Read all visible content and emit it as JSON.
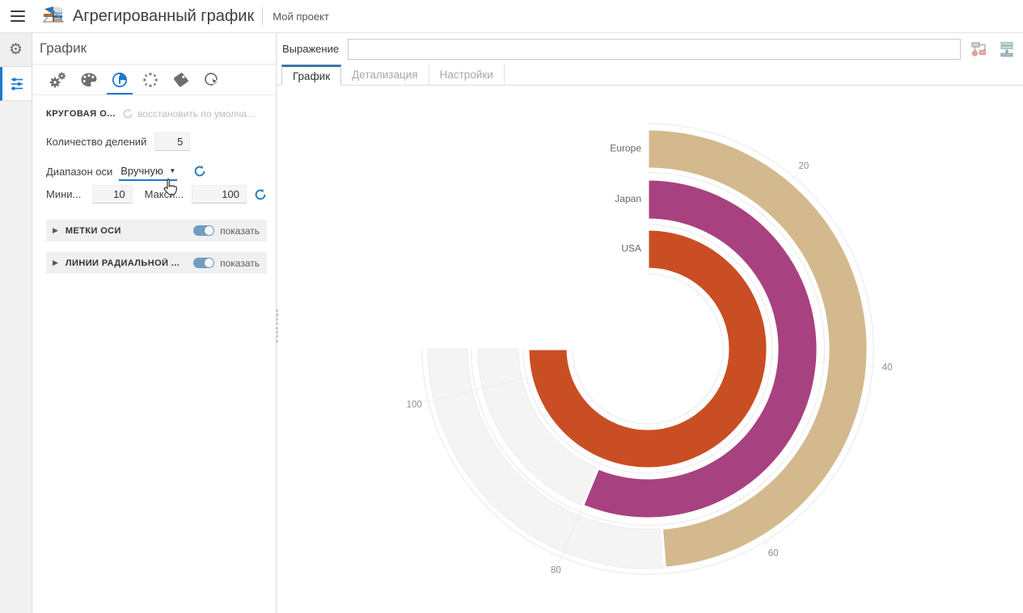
{
  "header": {
    "title": "Агрегированный график",
    "project": "Мой проект"
  },
  "rail": {
    "items": [
      {
        "icon": "gear-icon"
      },
      {
        "icon": "sliders-icon",
        "active": true
      }
    ]
  },
  "panel": {
    "title": "График",
    "icon_tabs": [
      "gears-icon",
      "palette-icon",
      "radial-chart-icon",
      "burst-icon",
      "tag-icon",
      "pointer-click-icon"
    ],
    "active_icon_tab": "radial-chart-icon",
    "prop_group_title": "КРУГОВАЯ О...",
    "restore_label": "восстановить по умолча...",
    "fields": {
      "divisions": {
        "label": "Количество делений",
        "value": "5"
      },
      "range": {
        "label": "Диапазон оси",
        "value": "Вручную"
      },
      "min": {
        "label": "Мини...",
        "value": "10"
      },
      "max": {
        "label": "Макси...",
        "value": "100"
      }
    },
    "sections": [
      {
        "label": "МЕТКИ ОСИ",
        "toggle_label": "показать",
        "on": true
      },
      {
        "label": "ЛИНИИ РАДИАЛЬНОЙ ...",
        "toggle_label": "показать",
        "on": true
      }
    ]
  },
  "main": {
    "expression": {
      "label": "Выражение",
      "value": ""
    },
    "tabs": [
      {
        "label": "График",
        "active": true
      },
      {
        "label": "Детализация",
        "active": false
      },
      {
        "label": "Настройки",
        "active": false
      }
    ]
  },
  "chart_data": {
    "type": "radial-bar",
    "categories": [
      "Europe",
      "Japan",
      "USA"
    ],
    "values": [
      65,
      75,
      100
    ],
    "series_colors": [
      "#d3b98d",
      "#a8417f",
      "#c94e23"
    ],
    "track_color": "#f4f4f4",
    "axis": {
      "min": 10,
      "max": 100,
      "divisions": 5,
      "ticks": [
        20,
        40,
        60,
        80,
        100
      ],
      "start_angle_deg": 0,
      "sweep_deg": 270,
      "direction": "clockwise"
    },
    "legend": "none",
    "grid": true
  },
  "colors": {
    "accent_blue": "#1d78cc",
    "tab_accent": "#3f75a2",
    "toggle_on": "#6f9dc0"
  }
}
